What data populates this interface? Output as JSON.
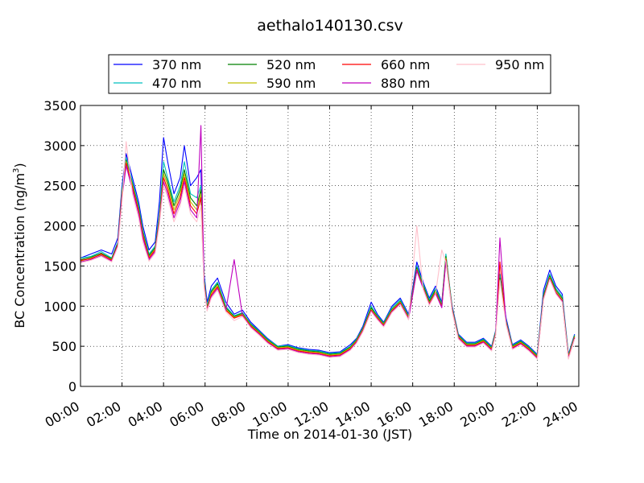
{
  "chart_data": {
    "type": "line",
    "title": "aethalo140130.csv",
    "xlabel": "Time on 2014-01-30 (JST)",
    "ylabel": "BC Concentration (ng/m",
    "ylabel_sup": "3",
    "ylabel_close": ")",
    "xlim": [
      0,
      24
    ],
    "ylim": [
      0,
      3500
    ],
    "x_tick_values": [
      0,
      2,
      4,
      6,
      8,
      10,
      12,
      14,
      16,
      18,
      20,
      22,
      24
    ],
    "x_tick_labels": [
      "00:00",
      "02:00",
      "04:00",
      "06:00",
      "08:00",
      "10:00",
      "12:00",
      "14:00",
      "16:00",
      "18:00",
      "20:00",
      "22:00",
      "24:00"
    ],
    "y_tick_values": [
      0,
      500,
      1000,
      1500,
      2000,
      2500,
      3000,
      3500
    ],
    "y_tick_labels": [
      "0",
      "500",
      "1000",
      "1500",
      "2000",
      "2500",
      "3000",
      "3500"
    ],
    "grid": true,
    "legend_position": "top",
    "legend_columns": 4,
    "x": [
      0,
      0.5,
      1,
      1.5,
      1.8,
      2,
      2.2,
      2.5,
      2.8,
      3,
      3.3,
      3.6,
      3.8,
      4,
      4.2,
      4.5,
      4.8,
      5,
      5.3,
      5.6,
      5.8,
      5.95,
      6.1,
      6.3,
      6.6,
      7,
      7.4,
      7.8,
      8.2,
      8.6,
      9,
      9.5,
      10,
      10.5,
      11,
      11.5,
      12,
      12.5,
      13,
      13.3,
      13.6,
      14,
      14.3,
      14.6,
      15,
      15.4,
      15.8,
      16.2,
      16.5,
      16.8,
      17.1,
      17.4,
      17.6,
      17.9,
      18.2,
      18.6,
      19,
      19.4,
      19.8,
      20,
      20.2,
      20.5,
      20.8,
      21.2,
      21.6,
      22,
      22.3,
      22.6,
      22.9,
      23.2,
      23.5,
      23.8
    ],
    "series": [
      {
        "name": "370 nm",
        "color": "#0000ff",
        "values": [
          1600,
          1650,
          1700,
          1650,
          1850,
          2500,
          2900,
          2600,
          2300,
          2000,
          1700,
          1800,
          2300,
          3100,
          2800,
          2400,
          2600,
          3000,
          2500,
          2600,
          2700,
          1400,
          1050,
          1250,
          1350,
          1050,
          900,
          950,
          800,
          700,
          600,
          500,
          520,
          480,
          460,
          450,
          420,
          430,
          520,
          600,
          750,
          1050,
          900,
          800,
          1000,
          1100,
          900,
          1550,
          1300,
          1100,
          1250,
          1050,
          1600,
          1000,
          650,
          550,
          550,
          600,
          500,
          700,
          1400,
          850,
          520,
          580,
          500,
          400,
          1200,
          1450,
          1250,
          1150,
          400,
          650
        ]
      },
      {
        "name": "470 nm",
        "color": "#00bfbf",
        "values": [
          1600,
          1620,
          1680,
          1600,
          1800,
          2450,
          2850,
          2550,
          2250,
          1950,
          1650,
          1750,
          2150,
          2800,
          2600,
          2300,
          2500,
          2800,
          2400,
          2350,
          2500,
          1350,
          1000,
          1200,
          1300,
          1000,
          880,
          920,
          780,
          690,
          590,
          500,
          510,
          470,
          450,
          440,
          410,
          420,
          500,
          590,
          730,
          1000,
          880,
          790,
          980,
          1080,
          880,
          1500,
          1280,
          1080,
          1220,
          1030,
          1650,
          980,
          640,
          540,
          540,
          590,
          490,
          690,
          1400,
          820,
          510,
          570,
          490,
          390,
          1150,
          1400,
          1220,
          1120,
          390,
          640
        ]
      },
      {
        "name": "520 nm",
        "color": "#008000",
        "values": [
          1580,
          1610,
          1660,
          1590,
          1780,
          2420,
          2820,
          2520,
          2220,
          1920,
          1630,
          1730,
          2100,
          2700,
          2550,
          2250,
          2450,
          2700,
          2350,
          2250,
          2450,
          1320,
          980,
          1180,
          1280,
          980,
          870,
          910,
          770,
          680,
          580,
          490,
          500,
          460,
          440,
          430,
          400,
          410,
          490,
          580,
          720,
          980,
          870,
          780,
          960,
          1060,
          870,
          1480,
          1260,
          1060,
          1200,
          1010,
          1620,
          970,
          630,
          530,
          530,
          580,
          480,
          680,
          1350,
          810,
          500,
          560,
          480,
          380,
          1130,
          1380,
          1200,
          1100,
          380,
          630
        ]
      },
      {
        "name": "590 nm",
        "color": "#bfbf00",
        "values": [
          1560,
          1600,
          1640,
          1580,
          1760,
          2400,
          2800,
          2500,
          2200,
          1900,
          1610,
          1710,
          2080,
          2650,
          2500,
          2200,
          2400,
          2650,
          2300,
          2200,
          2400,
          1300,
          970,
          1160,
          1260,
          960,
          860,
          900,
          760,
          670,
          570,
          480,
          490,
          450,
          430,
          420,
          390,
          400,
          480,
          570,
          710,
          960,
          860,
          770,
          950,
          1050,
          860,
          1460,
          1240,
          1040,
          1180,
          1000,
          1600,
          960,
          620,
          520,
          520,
          570,
          470,
          670,
          1330,
          800,
          490,
          550,
          470,
          370,
          1110,
          1360,
          1180,
          1080,
          370,
          620
        ]
      },
      {
        "name": "660 nm",
        "color": "#ff0000",
        "values": [
          1570,
          1590,
          1650,
          1570,
          1770,
          2380,
          2780,
          2480,
          2180,
          1880,
          1600,
          1700,
          2060,
          2600,
          2450,
          2150,
          2350,
          2600,
          2250,
          2150,
          2350,
          1280,
          960,
          1140,
          1240,
          950,
          850,
          890,
          750,
          660,
          560,
          470,
          480,
          440,
          420,
          410,
          380,
          390,
          470,
          560,
          700,
          950,
          850,
          760,
          940,
          1040,
          850,
          1450,
          1230,
          1030,
          1170,
          990,
          1580,
          950,
          610,
          510,
          510,
          560,
          460,
          660,
          1550,
          790,
          480,
          540,
          460,
          360,
          1100,
          1350,
          1170,
          1070,
          360,
          610
        ]
      },
      {
        "name": "880 nm",
        "color": "#bf00bf",
        "values": [
          1550,
          1580,
          1630,
          1560,
          1750,
          2350,
          2750,
          2450,
          2150,
          1850,
          1580,
          1680,
          2040,
          2550,
          2400,
          2100,
          2300,
          2550,
          2200,
          2100,
          3250,
          1260,
          950,
          1120,
          1220,
          940,
          1580,
          880,
          740,
          650,
          550,
          460,
          470,
          430,
          410,
          400,
          370,
          380,
          460,
          550,
          690,
          940,
          840,
          750,
          930,
          1030,
          840,
          1440,
          1220,
          1020,
          1160,
          980,
          1560,
          940,
          600,
          500,
          500,
          550,
          450,
          650,
          1850,
          780,
          470,
          530,
          450,
          350,
          1090,
          1340,
          1160,
          1060,
          350,
          600
        ]
      },
      {
        "name": "950 nm",
        "color": "#ffc0cb",
        "values": [
          1540,
          1570,
          1620,
          1550,
          1740,
          2300,
          3050,
          2400,
          2100,
          1800,
          1560,
          1660,
          2020,
          2500,
          2350,
          2050,
          2250,
          2500,
          2150,
          2050,
          2250,
          1240,
          940,
          1100,
          1200,
          930,
          820,
          870,
          730,
          640,
          540,
          450,
          460,
          420,
          400,
          390,
          360,
          370,
          450,
          540,
          680,
          930,
          830,
          740,
          920,
          1020,
          830,
          2000,
          1210,
          1010,
          1150,
          1700,
          1550,
          930,
          590,
          490,
          490,
          540,
          440,
          640,
          1320,
          770,
          460,
          520,
          440,
          340,
          1080,
          1330,
          1150,
          1050,
          340,
          590
        ]
      }
    ]
  }
}
